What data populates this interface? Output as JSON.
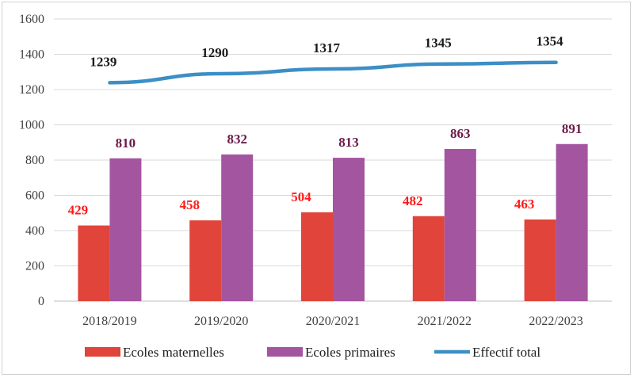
{
  "chart_data": {
    "type": "bar",
    "title": "",
    "xlabel": "",
    "ylabel": "",
    "ylim": [
      0,
      1600
    ],
    "yticks": [
      0,
      200,
      400,
      600,
      800,
      1000,
      1200,
      1400,
      1600
    ],
    "grid": true,
    "legend_position": "bottom",
    "categories": [
      "2018/2019",
      "2019/2020",
      "2020/2021",
      "2021/2022",
      "2022/2023"
    ],
    "series": [
      {
        "name": "Ecoles maternelles",
        "kind": "bar",
        "color": "#e0443a",
        "label_color": "#ff1a1a",
        "values": [
          429,
          458,
          504,
          482,
          463
        ]
      },
      {
        "name": "Ecoles primaires",
        "kind": "bar",
        "color": "#a355a0",
        "label_color": "#6b1a4a",
        "values": [
          810,
          832,
          813,
          863,
          891
        ]
      },
      {
        "name": "Effectif total",
        "kind": "line",
        "color": "#3c8fc6",
        "label_color": "#1a1a1a",
        "values": [
          1239,
          1290,
          1317,
          1345,
          1354
        ]
      }
    ]
  }
}
